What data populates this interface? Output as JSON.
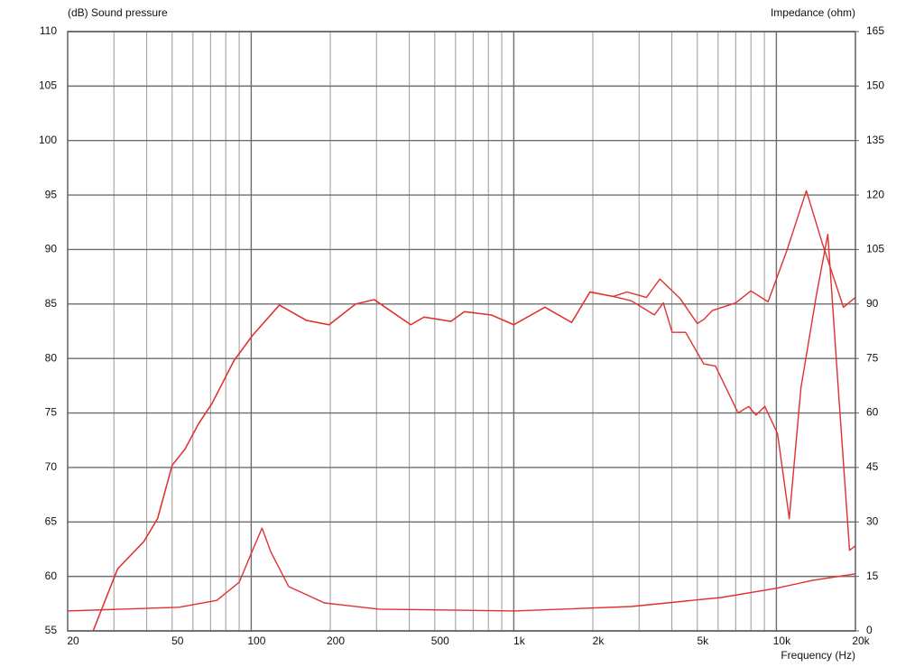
{
  "chart_data": {
    "type": "line",
    "y_label": "(dB)  Sound pressure",
    "y2_label": "Impedance  (ohm)",
    "x_label": "Frequency  (Hz)",
    "log_x": true,
    "grid": true,
    "xlim": [
      20,
      20000
    ],
    "xticks": [
      20,
      50,
      100,
      200,
      500,
      {
        "value": 1000,
        "label": "1k"
      },
      {
        "value": 2000,
        "label": "2k"
      },
      {
        "value": 5000,
        "label": "5k"
      },
      {
        "value": 10000,
        "label": "10k"
      },
      {
        "value": 20000,
        "label": "20k"
      }
    ],
    "xminor_ticks": [
      30,
      40,
      60,
      70,
      80,
      90,
      300,
      400,
      600,
      700,
      800,
      900,
      3000,
      4000,
      6000,
      7000,
      8000,
      9000
    ],
    "ylim": [
      55,
      110
    ],
    "yticks": [
      55,
      60,
      65,
      70,
      75,
      80,
      85,
      90,
      95,
      100,
      105,
      110
    ],
    "y2lim": [
      0,
      165
    ],
    "y2ticks": [
      0,
      15,
      30,
      45,
      60,
      75,
      90,
      105,
      120,
      135,
      150,
      165
    ],
    "series": [
      {
        "color": "#e03030",
        "x": [
          25,
          31,
          39,
          44,
          50,
          56,
          63,
          71,
          86,
          101,
          128,
          162,
          198,
          250,
          294,
          405,
          455,
          576,
          648,
          820,
          1000,
          1314,
          1660,
          1950,
          2390,
          2700,
          3000,
          3200,
          3600,
          4300,
          5000,
          5300,
          5700,
          7000,
          8000,
          9300,
          11000,
          13000,
          15000,
          18000,
          20000
        ],
        "values": [
          55,
          60.7,
          63.2,
          65.3,
          70.2,
          71.7,
          74,
          75.9,
          79.8,
          82.1,
          84.9,
          83.5,
          83.1,
          85,
          85.4,
          83.1,
          83.8,
          83.4,
          84.3,
          84,
          83.1,
          84.7,
          83.3,
          86.1,
          85.7,
          86.1,
          85.8,
          85.6,
          87.3,
          85.5,
          83.2,
          83.6,
          84.4,
          85.1,
          86.2,
          85.2,
          90,
          95.4,
          90.5,
          84.7,
          85.6
        ]
      },
      {
        "color": "#e03030",
        "x": [
          25,
          31,
          39,
          44,
          50,
          56,
          63,
          71,
          86,
          101,
          128,
          162,
          198,
          250,
          294,
          405,
          455,
          576,
          648,
          820,
          1000,
          1314,
          1660,
          1950,
          2390,
          2800,
          3430,
          3710,
          4010,
          4510,
          5290,
          5860,
          7150,
          7850,
          8360,
          9040,
          10100,
          11200,
          12400,
          14200,
          15700,
          17300,
          19000,
          20000
        ],
        "values": [
          55,
          60.7,
          63.2,
          65.3,
          70.2,
          71.7,
          74,
          75.9,
          79.8,
          82.1,
          84.9,
          83.5,
          83.1,
          85,
          85.4,
          83.1,
          83.8,
          83.4,
          84.3,
          84,
          83.1,
          84.7,
          83.3,
          86.1,
          85.7,
          85.3,
          84,
          85.1,
          82.4,
          82.4,
          79.5,
          79.3,
          75,
          75.6,
          74.8,
          75.6,
          73.1,
          65.3,
          77.3,
          85.8,
          91.4,
          76.4,
          62.4,
          62.8
        ]
      },
      {
        "color": "#e03030",
        "axis": "y2",
        "x": [
          20,
          53,
          74,
          90,
          101,
          110,
          119,
          139,
          190,
          306,
          1000,
          2800,
          6160,
          9930,
          13700,
          20000
        ],
        "values": [
          5.5,
          6.5,
          8.4,
          13.4,
          22.1,
          28.3,
          21.6,
          12.2,
          7.7,
          6,
          5.5,
          6.7,
          9.2,
          11.7,
          13.9,
          15.7
        ]
      }
    ]
  }
}
